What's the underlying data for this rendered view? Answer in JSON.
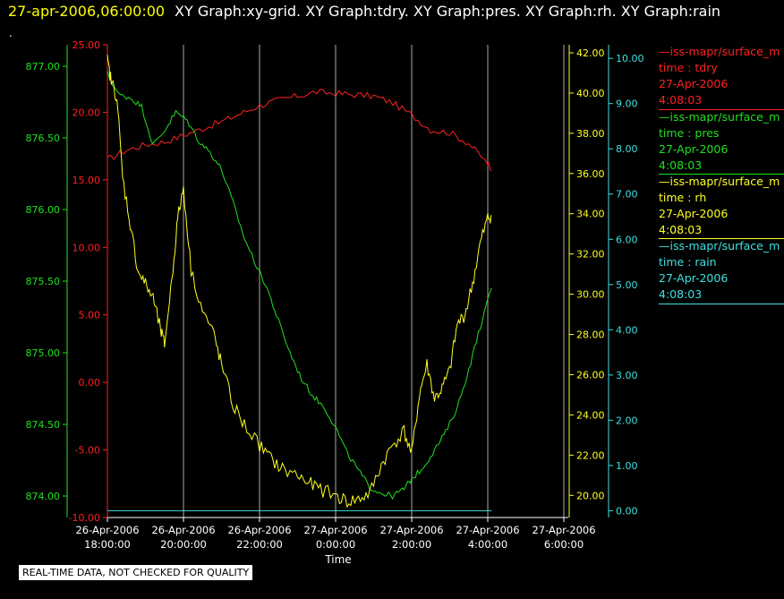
{
  "header": {
    "timestamp": "27-apr-2006,06:00:00",
    "titles": "XY Graph:xy-grid.  XY Graph:tdry.  XY Graph:pres.  XY Graph:rh.  XY Graph:rain"
  },
  "stray_mark": ".",
  "notice": "REAL-TIME DATA, NOT CHECKED FOR QUALITY",
  "colors": {
    "tdry": "#ff2020",
    "pres": "#20e020",
    "rh": "#ffff20",
    "rain": "#40e0e0",
    "grid": "#aaaaaa",
    "background": "#000000"
  },
  "legend": [
    {
      "line1": "—iss-mapr/surface_m",
      "line2": "time : tdry",
      "line3": "27-Apr-2006",
      "line4": "4:08:03",
      "color": "#ff2020"
    },
    {
      "line1": "—iss-mapr/surface_m",
      "line2": "time : pres",
      "line3": "27-Apr-2006",
      "line4": "4:08:03",
      "color": "#20e020"
    },
    {
      "line1": "—iss-mapr/surface_m",
      "line2": "time : rh",
      "line3": "27-Apr-2006",
      "line4": "4:08:03",
      "color": "#ffff20"
    },
    {
      "line1": "—iss-mapr/surface_m",
      "line2": "time : rain",
      "line3": "27-Apr-2006",
      "line4": "4:08:03",
      "color": "#40e0e0"
    }
  ],
  "chart_data": {
    "type": "line",
    "xlabel": "Time",
    "x_ticks": [
      {
        "date": "26-Apr-2006",
        "time": "18:00:00"
      },
      {
        "date": "26-Apr-2006",
        "time": "20:00:00"
      },
      {
        "date": "26-Apr-2006",
        "time": "22:00:00"
      },
      {
        "date": "27-Apr-2006",
        "time": "0:00:00"
      },
      {
        "date": "27-Apr-2006",
        "time": "2:00:00"
      },
      {
        "date": "27-Apr-2006",
        "time": "4:00:00"
      },
      {
        "date": "27-Apr-2006",
        "time": "6:00:00"
      }
    ],
    "x_range_hours": [
      18,
      30
    ],
    "axes": {
      "tdry": {
        "ticks": [
          "25.00",
          "20.00",
          "15.00",
          "10.00",
          "5.00",
          "0.00",
          "-5.00",
          "-10.00"
        ],
        "range": [
          -10,
          25
        ]
      },
      "pres": {
        "ticks": [
          "877.00",
          "876.50",
          "876.00",
          "875.50",
          "875.00",
          "874.50",
          "874.00"
        ],
        "range": [
          873.85,
          877.15
        ]
      },
      "rh": {
        "ticks": [
          "42.00",
          "40.00",
          "38.00",
          "36.00",
          "34.00",
          "32.00",
          "30.00",
          "28.00",
          "26.00",
          "24.00",
          "22.00",
          "20.00"
        ],
        "range": [
          18.9,
          42.4
        ]
      },
      "rain": {
        "ticks": [
          "10.00",
          "9.00",
          "8.00",
          "7.00",
          "6.00",
          "5.00",
          "4.00",
          "3.00",
          "2.00",
          "1.00",
          "0.00"
        ],
        "range": [
          -0.15,
          10.3
        ]
      }
    },
    "grid": true,
    "series": [
      {
        "name": "tdry",
        "x": [
          18.0,
          18.5,
          19.0,
          19.5,
          20.0,
          20.5,
          21.0,
          21.5,
          22.0,
          22.5,
          23.0,
          23.5,
          24.0,
          24.5,
          25.0,
          25.5,
          26.0,
          26.5,
          27.0,
          27.5,
          28.0,
          28.1
        ],
        "y": [
          16.5,
          17.2,
          17.6,
          17.8,
          18.3,
          18.8,
          19.3,
          19.9,
          20.5,
          20.9,
          21.2,
          21.5,
          21.4,
          21.3,
          21.2,
          20.7,
          19.8,
          18.7,
          18.5,
          17.7,
          16.2,
          15.7
        ]
      },
      {
        "name": "pres",
        "x": [
          18.0,
          18.3,
          18.6,
          18.9,
          19.2,
          19.5,
          19.8,
          20.1,
          20.4,
          20.7,
          21.0,
          21.3,
          21.6,
          21.9,
          22.2,
          22.5,
          22.8,
          23.1,
          23.4,
          23.7,
          24.0,
          24.3,
          24.6,
          24.9,
          25.2,
          25.5,
          25.8,
          26.0,
          26.3,
          26.6,
          26.9,
          27.2,
          27.5,
          27.8,
          28.1
        ],
        "y": [
          876.95,
          876.8,
          876.78,
          876.72,
          876.45,
          876.55,
          876.68,
          876.62,
          876.48,
          876.4,
          876.28,
          876.05,
          875.8,
          875.62,
          875.45,
          875.22,
          875.0,
          874.82,
          874.7,
          874.62,
          874.48,
          874.3,
          874.18,
          874.06,
          874.02,
          874.0,
          874.05,
          874.12,
          874.2,
          874.32,
          874.45,
          874.62,
          874.88,
          875.18,
          875.45
        ]
      },
      {
        "name": "rh",
        "x": [
          18.0,
          18.1,
          18.25,
          18.4,
          18.6,
          18.8,
          19.0,
          19.2,
          19.4,
          19.5,
          19.7,
          19.85,
          20.0,
          20.2,
          20.5,
          20.8,
          21.0,
          21.3,
          21.6,
          22.0,
          22.3,
          22.6,
          23.0,
          23.3,
          23.6,
          24.0,
          24.3,
          24.6,
          24.9,
          25.2,
          25.5,
          25.8,
          26.0,
          26.2,
          26.4,
          26.6,
          26.8,
          27.0,
          27.2,
          27.4,
          27.6,
          27.8,
          28.0,
          28.1
        ],
        "y": [
          41.6,
          40.6,
          39.8,
          35.8,
          33.5,
          31.2,
          30.5,
          29.8,
          28.2,
          27.5,
          30.8,
          33.8,
          35.3,
          31.2,
          29.2,
          28.0,
          26.5,
          24.5,
          23.5,
          22.5,
          21.8,
          21.3,
          21.0,
          20.6,
          20.3,
          20.0,
          19.7,
          19.8,
          20.1,
          21.5,
          22.5,
          23.2,
          22.0,
          25.0,
          26.5,
          24.8,
          25.3,
          26.2,
          28.5,
          29.0,
          30.5,
          32.5,
          33.8,
          33.9
        ]
      },
      {
        "name": "rain",
        "x": [
          18.0,
          28.1
        ],
        "y": [
          0.0,
          0.0
        ]
      }
    ]
  }
}
